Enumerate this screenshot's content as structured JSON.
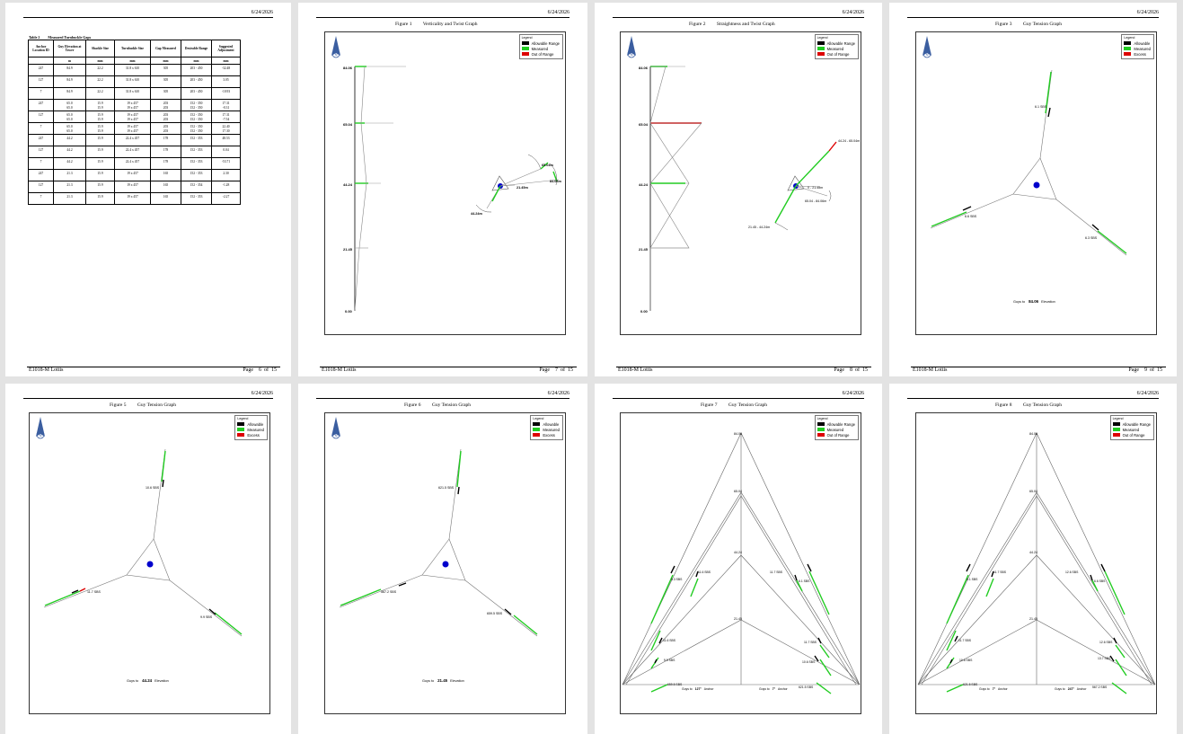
{
  "footer_left": "E1018-M Lottis",
  "pages": [
    {
      "date": "6/24/2026",
      "page_label": "Page    6  of  15"
    },
    {
      "date": "6/24/2026",
      "page_label": "Page    7  of  15",
      "title": "Figure 1         Verticality and Twist Graph"
    },
    {
      "date": "6/24/2026",
      "page_label": "Page    8  of  15",
      "title": "Figure 2         Straightness and Twist Graph"
    },
    {
      "date": "6/24/2026",
      "page_label": "Page    9  of  15",
      "title": "Figure 3         Guy Tension Graph"
    },
    {
      "date": "6/24/2026",
      "title": "Figure 5         Guy Tension Graph"
    },
    {
      "date": "6/24/2026",
      "title": "Figure 6         Guy Tension Graph"
    },
    {
      "date": "6/24/2026",
      "title": "Figure 7         Guy Tension Graph"
    },
    {
      "date": "6/24/2026",
      "title": "Figure 8         Guy Tension Graph"
    }
  ],
  "table": {
    "title": "Table 2         Measured Turnbuckle Gaps",
    "headers": [
      "Anchor Location ID",
      "Guy Elevation at Tower",
      "Shackle Size",
      "Turnbuckle Size",
      "Gap Measured",
      "Desirable Range",
      "Suggested Adjustment"
    ],
    "units": [
      "",
      "m",
      "mm",
      "mm",
      "mm",
      "mm",
      "mm"
    ],
    "rows": [
      [
        "247",
        "84.9",
        "22.2",
        "31.8 x 610",
        "305",
        "203 - 450",
        "-32.48"
      ],
      [
        "127",
        "84.9",
        "22.2",
        "31.8 x 610",
        "305",
        "203 - 450",
        "3.05"
      ],
      [
        "7",
        "84.9",
        "22.2",
        "31.8 x 610",
        "305",
        "203 - 450",
        "-10.93"
      ],
      [
        "247",
        "65.0\n65.0",
        "15.9\n15.9",
        "19 x 457\n19 x 457",
        "203\n203",
        "152 - 350\n152 - 350",
        "17.31\n-0.31"
      ],
      [
        "127",
        "65.0\n65.0",
        "15.9\n15.9",
        "19 x 457\n19 x 457",
        "203\n203",
        "152 - 350\n152 - 350",
        "17.31\n-7.54"
      ],
      [
        "7",
        "65.0\n65.0",
        "15.9\n15.9",
        "19 x 457\n19 x 457",
        "203\n203",
        "152 - 350\n152 - 350",
        "22.40\n17.30"
      ],
      [
        "247",
        "44.2",
        "15.9",
        "22.4 x 457",
        "178",
        "152 - 353",
        "48.53"
      ],
      [
        "127",
        "44.2",
        "15.9",
        "22.4 x 457",
        "178",
        "152 - 353",
        "0.04"
      ],
      [
        "7",
        "44.2",
        "15.9",
        "22.4 x 457",
        "178",
        "152 - 353",
        "-53.71"
      ],
      [
        "247",
        "21.3",
        "15.9",
        "19 x 457",
        "165",
        "152 - 353",
        "2.30"
      ],
      [
        "127",
        "21.3",
        "15.9",
        "19 x 457",
        "165",
        "152 - 354",
        "-1.28"
      ],
      [
        "7",
        "21.3",
        "15.9",
        "19 x 457",
        "165",
        "152 - 353",
        "-2.27"
      ]
    ]
  },
  "legends": {
    "range": {
      "title": "Legend",
      "items": [
        "Allowable Range",
        "Measured",
        "Out of Range"
      ]
    },
    "excess": {
      "title": "Legend",
      "items": [
        "Allowable",
        "Measured",
        "Excess"
      ]
    }
  },
  "colors": {
    "allowable": "#000000",
    "measured": "#22cc22",
    "out_of_range": "#dd0000",
    "center": "#0000cc"
  },
  "elevations": [
    "84.06",
    "65.04",
    "44.24",
    "21.45",
    "0.00"
  ],
  "fig1": {
    "labels": [
      "65.04m",
      "84.06m",
      "21.45m",
      "44.24m"
    ]
  },
  "fig2": {
    "labels": [
      "44.24 - 65.04m",
      "0 - 21.45m",
      "65.04 - 84.06m",
      "21.45 - 44.24m"
    ]
  },
  "fig3": {
    "tensions": [
      "6.1 SBS",
      "6.6 SBS",
      "6.3 SBS"
    ],
    "caption_pre": "Guys to",
    "caption_val": "84.06",
    "caption_post": "Elevation"
  },
  "fig5": {
    "tensions": [
      "10.6 SBS",
      "11.7 SBS",
      "9.9 SBS"
    ],
    "caption_pre": "Guys to",
    "caption_val": "44.24",
    "caption_post": "Elevation"
  },
  "fig6": {
    "tensions": [
      "621.5 SBS",
      "567.2 SBS",
      "659.5 SBS"
    ],
    "caption_pre": "Guys to",
    "caption_val": "21.45",
    "caption_post": "Elevation"
  },
  "fig7": {
    "left": [
      "6.3 SBS",
      "11.6 SBS",
      "9.9 SBS",
      "659.5 SBS"
    ],
    "right": [
      "11.7 SBS",
      "6.1 SBS",
      "11.7 SBS",
      "10.6 SBS",
      "621.5 SBS"
    ],
    "left_inner": [
      "11.6 SBS"
    ],
    "cap_left_pre": "Guys to",
    "cap_left_val": "127°",
    "cap_left_post": "Anchor",
    "cap_right_pre": "Guys to",
    "cap_right_val": "7°",
    "cap_right_post": "Anchor"
  },
  "fig8": {
    "left": [
      "6.1 SBS",
      "11.7 SBS",
      "10.6 SBS",
      "621.5 SBS"
    ],
    "right": [
      "12.6 SBS",
      "6.6 SBS",
      "12.6 SBS",
      "13.7 SBS",
      "567.2 SBS"
    ],
    "left_inner": [
      "11.7 SBS"
    ],
    "cap_left_pre": "Guys to",
    "cap_left_val": "7°",
    "cap_left_post": "Anchor",
    "cap_right_pre": "Guys to",
    "cap_right_val": "247°",
    "cap_right_post": "Anchor"
  }
}
